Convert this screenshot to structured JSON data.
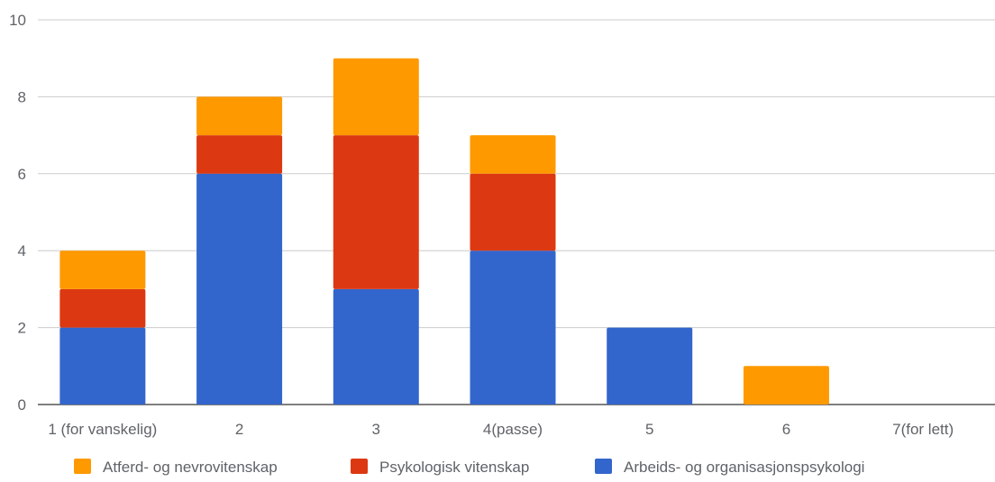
{
  "chart_data": {
    "type": "bar",
    "stacked": true,
    "title": "",
    "xlabel": "",
    "ylabel": "",
    "categories": [
      "1 (for vanskelig)",
      "2",
      "3",
      "4(passe)",
      "5",
      "6",
      "7(for lett)"
    ],
    "series": [
      {
        "name": "Arbeids- og organisasjonspsykologi",
        "color": "#3366cc",
        "values": [
          2,
          6,
          3,
          4,
          2,
          0,
          0
        ]
      },
      {
        "name": "Psykologisk vitenskap",
        "color": "#dc3912",
        "values": [
          1,
          1,
          4,
          2,
          0,
          0,
          0
        ]
      },
      {
        "name": "Atferd- og nevrovitenskap",
        "color": "#ff9900",
        "values": [
          1,
          1,
          2,
          1,
          0,
          1,
          0
        ]
      }
    ],
    "ylim": [
      0,
      10
    ],
    "yticks": [
      0,
      2,
      4,
      6,
      8,
      10
    ],
    "grid": true,
    "legend_position": "bottom",
    "legend_order": [
      "Atferd- og nevrovitenskap",
      "Psykologisk vitenskap",
      "Arbeids- og organisasjonspsykologi"
    ]
  }
}
